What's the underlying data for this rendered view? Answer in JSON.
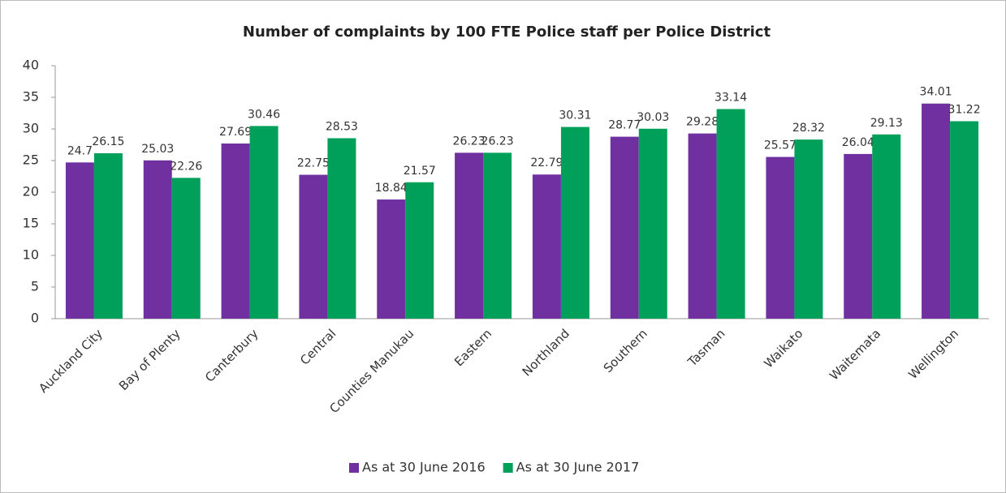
{
  "chart_data": {
    "type": "bar",
    "title": "Number of complaints by 100 FTE Police staff per Police District",
    "categories": [
      "Auckland City",
      "Bay of Plenty",
      "Canterbury",
      "Central",
      "Counties Manukau",
      "Eastern",
      "Northland",
      "Southern",
      "Tasman",
      "Waikato",
      "Waitemata",
      "Wellington"
    ],
    "series": [
      {
        "name": "As at 30 June 2016",
        "color": "#7030a0",
        "values": [
          24.7,
          25.03,
          27.69,
          22.75,
          18.84,
          26.23,
          22.79,
          28.77,
          29.28,
          25.57,
          26.04,
          34.01
        ]
      },
      {
        "name": "As at 30 June 2017",
        "color": "#00a05a",
        "values": [
          26.15,
          22.26,
          30.46,
          28.53,
          21.57,
          26.23,
          30.31,
          30.03,
          33.14,
          28.32,
          29.13,
          31.22
        ]
      }
    ],
    "ylim": [
      0,
      40
    ],
    "yticks": [
      0,
      5,
      10,
      15,
      20,
      25,
      30,
      35,
      40
    ],
    "grid": false,
    "legend": "bottom"
  }
}
